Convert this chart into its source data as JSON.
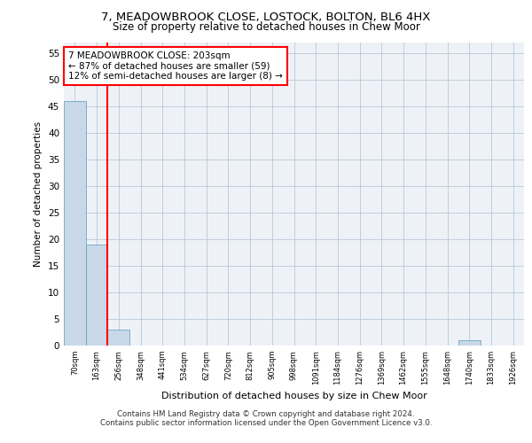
{
  "title_line1": "7, MEADOWBROOK CLOSE, LOSTOCK, BOLTON, BL6 4HX",
  "title_line2": "Size of property relative to detached houses in Chew Moor",
  "xlabel": "Distribution of detached houses by size in Chew Moor",
  "ylabel": "Number of detached properties",
  "categories": [
    "70sqm",
    "163sqm",
    "256sqm",
    "348sqm",
    "441sqm",
    "534sqm",
    "627sqm",
    "720sqm",
    "812sqm",
    "905sqm",
    "998sqm",
    "1091sqm",
    "1184sqm",
    "1276sqm",
    "1369sqm",
    "1462sqm",
    "1555sqm",
    "1648sqm",
    "1740sqm",
    "1833sqm",
    "1926sqm"
  ],
  "values": [
    46,
    19,
    3,
    0,
    0,
    0,
    0,
    0,
    0,
    0,
    0,
    0,
    0,
    0,
    0,
    0,
    0,
    0,
    1,
    0,
    0
  ],
  "bar_color": "#c8d8e8",
  "bar_edge_color": "#5a9abf",
  "red_line_x": 1.5,
  "annotation_title": "7 MEADOWBROOK CLOSE: 203sqm",
  "annotation_line2": "← 87% of detached houses are smaller (59)",
  "annotation_line3": "12% of semi-detached houses are larger (8) →",
  "ylim": [
    0,
    57
  ],
  "yticks": [
    0,
    5,
    10,
    15,
    20,
    25,
    30,
    35,
    40,
    45,
    50,
    55
  ],
  "footer_line1": "Contains HM Land Registry data © Crown copyright and database right 2024.",
  "footer_line2": "Contains public sector information licensed under the Open Government Licence v3.0.",
  "bg_color": "#eef2f7"
}
